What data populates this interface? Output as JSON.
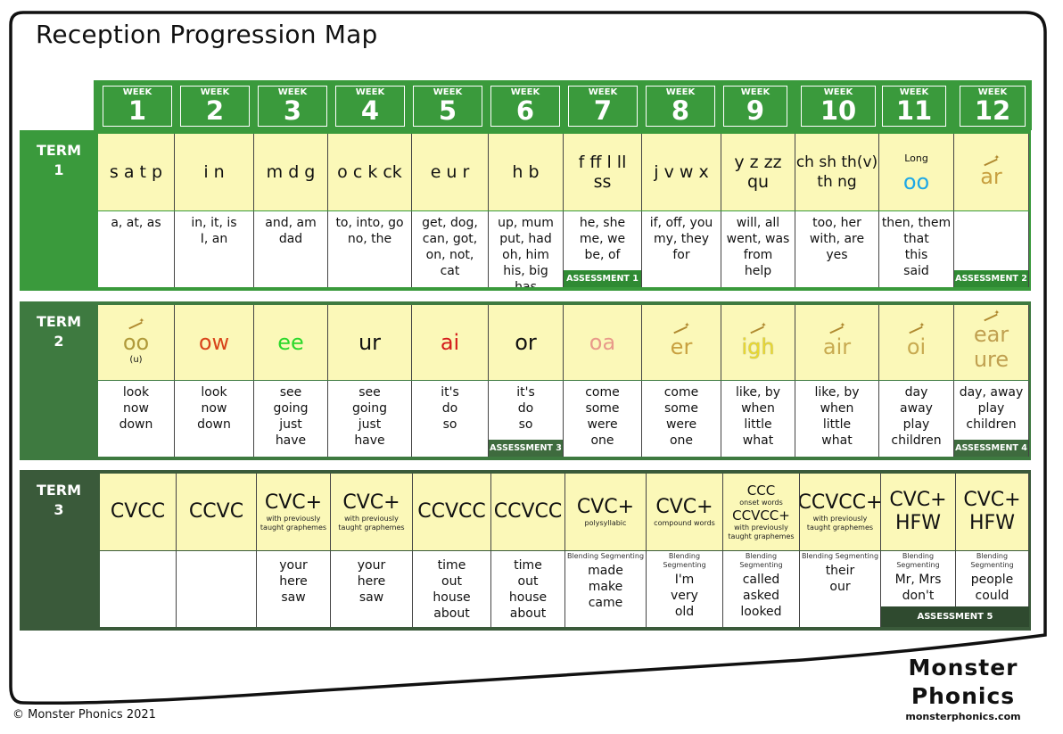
{
  "title": "Reception Progression Map",
  "week_label": "WEEK",
  "weeks": [
    "1",
    "2",
    "3",
    "4",
    "5",
    "6",
    "7",
    "8",
    "9",
    "10",
    "11",
    "12"
  ],
  "term1": {
    "label_line1": "TERM",
    "label_line2": "1",
    "graphemes": [
      "s a t p",
      "i n",
      "m d g",
      "o c k ck",
      "e u r",
      "h b",
      "f ff l ll\nss",
      "j v w x",
      "y z zz\nqu",
      "ch sh th(v)\nth ng",
      "Long\noo",
      "ar"
    ],
    "words": [
      "a, at, as",
      "in, it, is\nI, an",
      "and, am\ndad",
      "to, into, go\nno, the",
      "get, dog,\ncan, got,\non, not,\ncat",
      "up, mum\nput, had\noh, him\nhis, big\nhas",
      "he, she\nme, we\nbe, of",
      "if, off, you\nmy, they\nfor",
      "will, all\nwent, was\nfrom\nhelp",
      "too, her\nwith, are\nyes",
      "then, them\nthat\nthis\nsaid",
      ""
    ],
    "assessments": {
      "6": "ASSESSMENT 1",
      "11": "ASSESSMENT 2"
    }
  },
  "term2": {
    "label_line1": "TERM",
    "label_line2": "2",
    "graphemes": [
      "oo",
      "ow",
      "ee",
      "ur",
      "ai",
      "or",
      "oa",
      "er",
      "igh",
      "air",
      "oi",
      "ear\nure"
    ],
    "grapheme_sub": [
      "(u)",
      "",
      "",
      "",
      "",
      "",
      "",
      "",
      "",
      "",
      "",
      ""
    ],
    "grapheme_colors": [
      "#b09a3a",
      "#d8451b",
      "#2bd82b",
      "#111111",
      "#d41b1b",
      "#111111",
      "#e89a8a",
      "#c8a040",
      "#e8d830",
      "#c8aa50",
      "#c8aa50",
      "#c0a050"
    ],
    "words": [
      "look\nnow\ndown",
      "look\nnow\ndown",
      "see\ngoing\njust\nhave",
      "see\ngoing\njust\nhave",
      "it's\ndo\nso",
      "it's\ndo\nso",
      "come\nsome\nwere\none",
      "come\nsome\nwere\none",
      "like, by\nwhen\nlittle\nwhat",
      "like, by\nwhen\nlittle\nwhat",
      "day\naway\nplay\nchildren",
      "day, away\nplay\nchildren"
    ],
    "assessments": {
      "5": "ASSESSMENT 3",
      "11": "ASSESSMENT 4"
    }
  },
  "term3": {
    "label_line1": "TERM",
    "label_line2": "3",
    "patterns": [
      "CVCC",
      "CCVC",
      "CVC+",
      "CVC+",
      "CCVCC",
      "CCVCC",
      "CVC+",
      "CVC+",
      "CCC",
      "CCVCC+",
      "CVC+\nHFW",
      "CVC+\nHFW"
    ],
    "pattern_sub": [
      "",
      "",
      "with previously\ntaught graphemes",
      "with previously\ntaught graphemes",
      "",
      "",
      "polysyllabic",
      "compound words",
      "",
      "with previously\ntaught graphemes",
      "",
      ""
    ],
    "ccc_extra": [
      "onset words",
      "CCVCC+",
      "with previously\ntaught graphemes"
    ],
    "blend_label": [
      "",
      "",
      "",
      "",
      "",
      "",
      "Blending Segmenting",
      "Blending Segmenting",
      "Blending Segmenting",
      "Blending Segmenting",
      "Blending Segmenting",
      "Blending Segmenting"
    ],
    "words": [
      "",
      "",
      "your\nhere\nsaw",
      "your\nhere\nsaw",
      "time\nout\nhouse\nabout",
      "time\nout\nhouse\nabout",
      "made\nmake\ncame",
      "I'm\nvery\nold",
      "called\nasked\nlooked",
      "their\nour",
      "Mr, Mrs\ndon't",
      "people\ncould"
    ],
    "assessment": "ASSESSMENT 5"
  },
  "footer": "© Monster Phonics 2021",
  "logo": {
    "line1": "Monster",
    "line2": "Phonics",
    "url": "monsterphonics.com"
  }
}
